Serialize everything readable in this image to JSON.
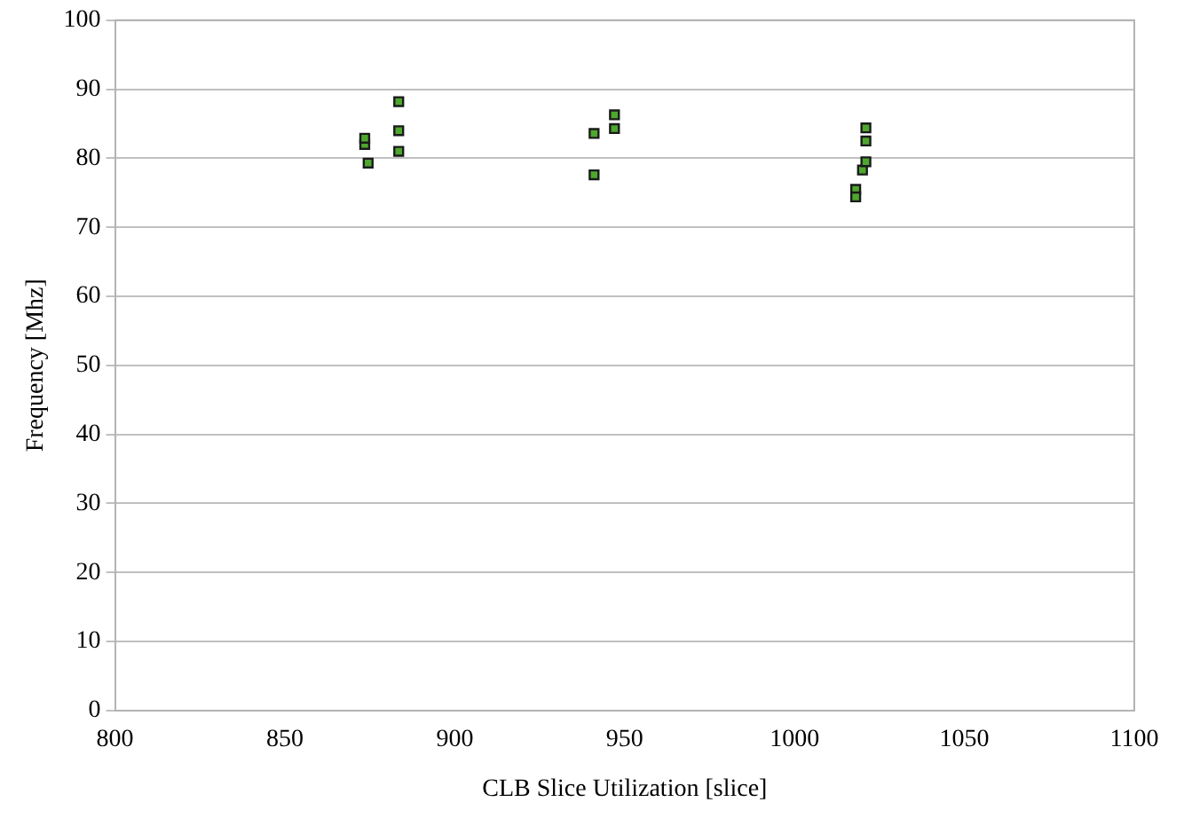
{
  "chart_data": {
    "type": "scatter",
    "xlabel": "CLB Slice Utilization [slice]",
    "ylabel": "Frequency [Mhz]",
    "x": [
      873.5,
      873.5,
      874.5,
      883.5,
      883.5,
      883.5,
      941,
      941,
      947,
      947,
      1018,
      1018,
      1020,
      1021,
      1021,
      1021
    ],
    "values": [
      82,
      82.9,
      79.3,
      88.2,
      84,
      81,
      83.6,
      77.6,
      86.3,
      84.3,
      75.5,
      74.4,
      78.3,
      79.5,
      82.5,
      84.4
    ],
    "color": "#4ea72e",
    "marker": "square",
    "xlim": [
      800,
      1100
    ],
    "xticks": [
      800,
      850,
      900,
      950,
      1000,
      1050,
      1100
    ],
    "ylim": [
      0,
      100
    ],
    "yticks": [
      0,
      10,
      20,
      30,
      40,
      50,
      60,
      70,
      80,
      90,
      100
    ],
    "grid": "y",
    "legend": false
  }
}
